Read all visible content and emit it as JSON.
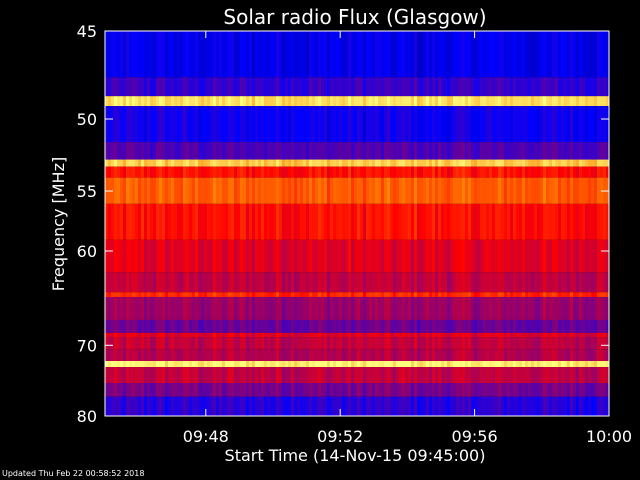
{
  "chart_data": {
    "type": "heatmap",
    "title": "Solar radio Flux (Glasgow)",
    "xlabel": "Start Time (14-Nov-15 09:45:00)",
    "ylabel": "Frequency [MHz]",
    "x_tick_labels": [
      "09:48",
      "09:52",
      "09:56",
      "10:00"
    ],
    "x_ticks_minutes": [
      3,
      7,
      11,
      15
    ],
    "x_range_minutes": [
      0,
      15
    ],
    "y_tick_labels": [
      "45",
      "50",
      "55",
      "60",
      "70",
      "80"
    ],
    "y_ticks": [
      45,
      50,
      55,
      60,
      70,
      80
    ],
    "y_range": [
      45,
      80
    ],
    "y_inverted": true,
    "y_scale": "reciprocal",
    "colormap": [
      "#000060",
      "#0000ff",
      "#800080",
      "#ff0000",
      "#ff8000",
      "#ffff80"
    ],
    "bands_mhz": [
      {
        "from": 45.0,
        "to": 47.5,
        "level": 0.18
      },
      {
        "from": 47.5,
        "to": 48.6,
        "level": 0.28
      },
      {
        "from": 48.6,
        "to": 49.2,
        "level": 0.95
      },
      {
        "from": 49.2,
        "to": 51.5,
        "level": 0.22
      },
      {
        "from": 51.5,
        "to": 52.7,
        "level": 0.32
      },
      {
        "from": 52.7,
        "to": 53.2,
        "level": 0.92
      },
      {
        "from": 53.2,
        "to": 54.0,
        "level": 0.62
      },
      {
        "from": 54.0,
        "to": 56.0,
        "level": 0.74
      },
      {
        "from": 56.0,
        "to": 59.0,
        "level": 0.62
      },
      {
        "from": 59.0,
        "to": 62.0,
        "level": 0.55
      },
      {
        "from": 62.0,
        "to": 64.0,
        "level": 0.5
      },
      {
        "from": 64.0,
        "to": 64.5,
        "level": 0.66
      },
      {
        "from": 64.5,
        "to": 67.0,
        "level": 0.44
      },
      {
        "from": 67.0,
        "to": 68.5,
        "level": 0.36
      },
      {
        "from": 68.5,
        "to": 69.0,
        "level": 0.55
      },
      {
        "from": 69.0,
        "to": 70.5,
        "level": 0.5
      },
      {
        "from": 70.5,
        "to": 72.0,
        "level": 0.48
      },
      {
        "from": 72.0,
        "to": 72.8,
        "level": 0.98
      },
      {
        "from": 72.8,
        "to": 75.0,
        "level": 0.5
      },
      {
        "from": 75.0,
        "to": 77.0,
        "level": 0.38
      },
      {
        "from": 77.0,
        "to": 80.0,
        "level": 0.26
      }
    ]
  },
  "footer": {
    "updated": "Updated Thu Feb 22 00:58:52 2018"
  },
  "colors": {
    "background": "#000000",
    "text": "#ffffff"
  }
}
